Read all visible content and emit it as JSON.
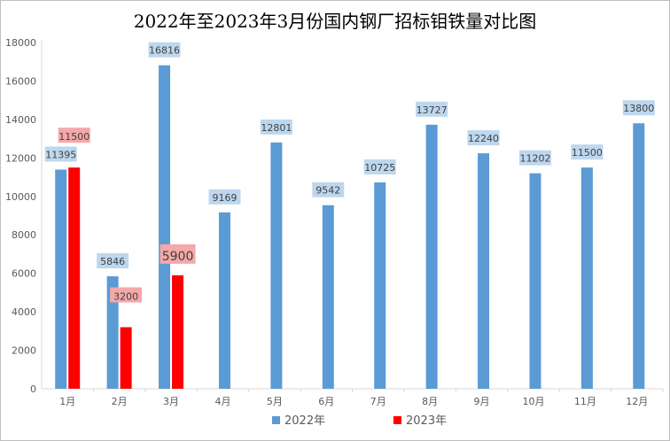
{
  "chart_data": {
    "type": "bar",
    "title": "2022年至2023年3月份国内钢厂招标钼铁量对比图",
    "xlabel": "",
    "ylabel": "",
    "ylim": [
      0,
      18000
    ],
    "yticks": [
      0,
      2000,
      4000,
      6000,
      8000,
      10000,
      12000,
      14000,
      16000,
      18000
    ],
    "grid": false,
    "legend_position": "bottom",
    "categories": [
      "1月",
      "2月",
      "3月",
      "4月",
      "5月",
      "6月",
      "7月",
      "8月",
      "9月",
      "10月",
      "11月",
      "12月"
    ],
    "series": [
      {
        "name": "2022年",
        "color": "#5b9bd5",
        "label_bg": "#bdd7ee",
        "values": [
          11395,
          5846,
          16816,
          9169,
          12801,
          9542,
          10725,
          13727,
          12240,
          11202,
          11500,
          13800
        ]
      },
      {
        "name": "2023年",
        "color": "#ff0000",
        "label_bg": "#f4a8a8",
        "values": [
          11500,
          3200,
          5900,
          null,
          null,
          null,
          null,
          null,
          null,
          null,
          null,
          null
        ]
      }
    ]
  }
}
